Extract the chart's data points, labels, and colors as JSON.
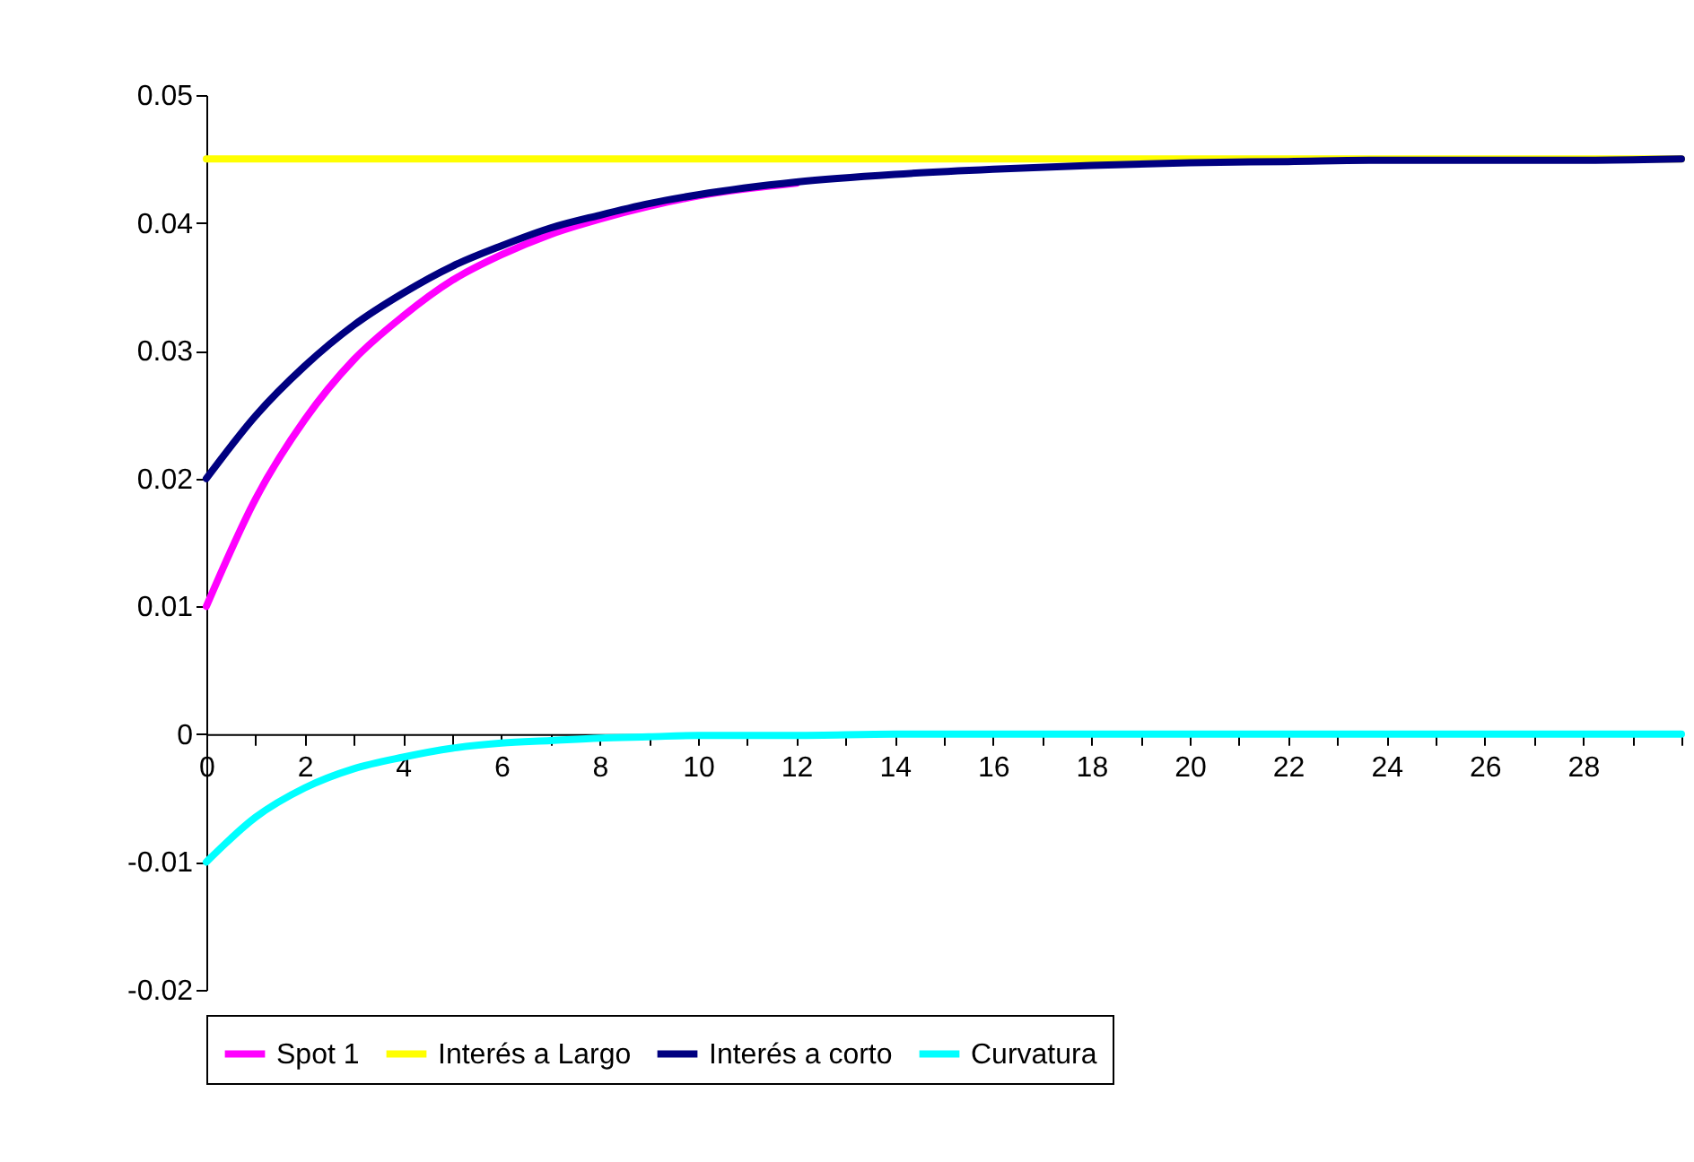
{
  "chart_data": {
    "type": "line",
    "x": [
      0,
      1,
      2,
      3,
      4,
      5,
      6,
      7,
      8,
      9,
      10,
      12,
      14,
      16,
      18,
      20,
      22,
      24,
      26,
      28,
      30
    ],
    "xlim": [
      0,
      30
    ],
    "xticks": [
      0,
      {
        "value": 1,
        "label": null
      },
      2,
      {
        "value": 3,
        "label": null
      },
      4,
      {
        "value": 5,
        "label": null
      },
      6,
      {
        "value": 7,
        "label": null
      },
      8,
      {
        "value": 9,
        "label": null
      },
      10,
      {
        "value": 11,
        "label": null
      },
      12,
      {
        "value": 13,
        "label": null
      },
      14,
      {
        "value": 15,
        "label": null
      },
      16,
      {
        "value": 17,
        "label": null
      },
      18,
      {
        "value": 19,
        "label": null
      },
      20,
      {
        "value": 21,
        "label": null
      },
      22,
      {
        "value": 23,
        "label": null
      },
      24,
      {
        "value": 25,
        "label": null
      },
      26,
      {
        "value": 27,
        "label": null
      },
      28,
      {
        "value": 29,
        "label": null
      },
      {
        "value": 30,
        "label": null
      }
    ],
    "ylim": [
      -0.02,
      0.05
    ],
    "yticks": [
      -0.02,
      -0.01,
      0,
      0.01,
      0.02,
      0.03,
      0.04,
      0.05
    ],
    "grid": false,
    "legend": "bottom",
    "marker": "none",
    "line_style": "solid",
    "series": [
      {
        "name": "Spot 1",
        "color": "#ff00ff",
        "values": [
          0.01,
          0.0184,
          0.0246,
          0.0293,
          0.0327,
          0.0355,
          0.0375,
          0.0391,
          0.0403,
          0.0413,
          0.0421,
          0.0431,
          null,
          null,
          null,
          null,
          null,
          null,
          null,
          null,
          null
        ]
      },
      {
        "name": "Interés a Largo",
        "color": "#ffff00",
        "values": [
          0.045,
          0.045,
          0.045,
          0.045,
          0.045,
          0.045,
          0.045,
          0.045,
          0.045,
          0.045,
          0.045,
          0.045,
          0.045,
          0.045,
          0.045,
          0.045,
          0.045,
          0.045,
          0.045,
          0.045,
          0.045
        ]
      },
      {
        "name": "Interés a corto",
        "color": "#000080",
        "values": [
          0.02,
          0.0249,
          0.0288,
          0.032,
          0.0345,
          0.0366,
          0.0382,
          0.0396,
          0.0406,
          0.0415,
          0.0422,
          0.0432,
          0.0438,
          0.0442,
          0.0445,
          0.0447,
          0.0448,
          0.0449,
          0.0449,
          0.0449,
          0.045
        ]
      },
      {
        "name": "Curvatura",
        "color": "#00ffff",
        "values": [
          -0.01,
          -0.0065,
          -0.0042,
          -0.0027,
          -0.0018,
          -0.0011,
          -0.0007,
          -0.0005,
          -0.0003,
          -0.0002,
          -0.0001,
          -0.0001,
          0,
          0,
          0,
          0,
          0,
          0,
          0,
          0,
          0
        ]
      }
    ]
  }
}
